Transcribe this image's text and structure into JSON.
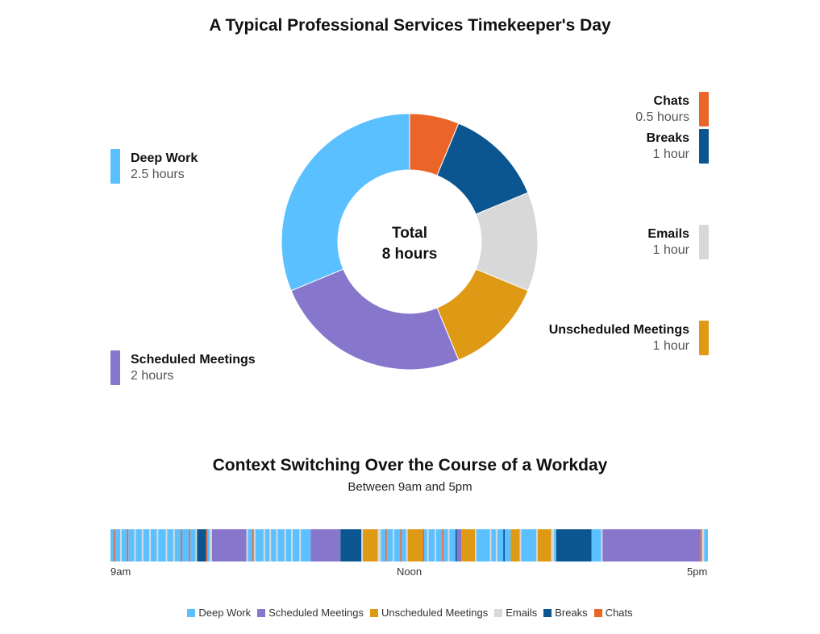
{
  "colors": {
    "deep_work": "#5bc0ff",
    "scheduled_meetings": "#8676cc",
    "unscheduled_meetings": "#de9a14",
    "emails": "#d8d8d8",
    "breaks": "#0b5590",
    "chats": "#ea6527"
  },
  "chart_data": [
    {
      "type": "pie",
      "title": "A Typical Professional Services Timekeeper's Day",
      "center_label": [
        "Total",
        "8 hours"
      ],
      "slices": [
        {
          "key": "chats",
          "name": "Chats",
          "value": 0.5,
          "label": "0.5 hours"
        },
        {
          "key": "breaks",
          "name": "Breaks",
          "value": 1,
          "label": "1 hour"
        },
        {
          "key": "emails",
          "name": "Emails",
          "value": 1,
          "label": "1 hour"
        },
        {
          "key": "unscheduled_meetings",
          "name": "Unscheduled Meetings",
          "value": 1,
          "label": "1 hour"
        },
        {
          "key": "scheduled_meetings",
          "name": "Scheduled Meetings",
          "value": 2,
          "label": "2 hours"
        },
        {
          "key": "deep_work",
          "name": "Deep Work",
          "value": 2.5,
          "label": "2.5 hours"
        }
      ]
    },
    {
      "type": "timeline",
      "title": "Context Switching Over the Course of a Workday",
      "subtitle": "Between 9am and 5pm",
      "x_ticks": [
        "9am",
        "Noon",
        "5pm"
      ],
      "x_range_hours": [
        9,
        17
      ],
      "segments": [
        {
          "start": 9.0,
          "end": 9.04,
          "key": "deep_work"
        },
        {
          "start": 9.04,
          "end": 9.06,
          "key": "chats"
        },
        {
          "start": 9.06,
          "end": 9.13,
          "key": "deep_work"
        },
        {
          "start": 9.13,
          "end": 9.15,
          "key": "emails"
        },
        {
          "start": 9.15,
          "end": 9.22,
          "key": "deep_work"
        },
        {
          "start": 9.22,
          "end": 9.24,
          "key": "chats"
        },
        {
          "start": 9.24,
          "end": 9.32,
          "key": "deep_work"
        },
        {
          "start": 9.32,
          "end": 9.34,
          "key": "emails"
        },
        {
          "start": 9.34,
          "end": 9.42,
          "key": "deep_work"
        },
        {
          "start": 9.42,
          "end": 9.44,
          "key": "emails"
        },
        {
          "start": 9.44,
          "end": 9.52,
          "key": "deep_work"
        },
        {
          "start": 9.52,
          "end": 9.54,
          "key": "emails"
        },
        {
          "start": 9.54,
          "end": 9.62,
          "key": "deep_work"
        },
        {
          "start": 9.62,
          "end": 9.64,
          "key": "emails"
        },
        {
          "start": 9.64,
          "end": 9.74,
          "key": "deep_work"
        },
        {
          "start": 9.74,
          "end": 9.76,
          "key": "emails"
        },
        {
          "start": 9.76,
          "end": 9.84,
          "key": "deep_work"
        },
        {
          "start": 9.84,
          "end": 9.86,
          "key": "emails"
        },
        {
          "start": 9.86,
          "end": 9.94,
          "key": "deep_work"
        },
        {
          "start": 9.94,
          "end": 9.96,
          "key": "chats"
        },
        {
          "start": 9.96,
          "end": 10.05,
          "key": "deep_work"
        },
        {
          "start": 10.05,
          "end": 10.07,
          "key": "chats"
        },
        {
          "start": 10.07,
          "end": 10.14,
          "key": "deep_work"
        },
        {
          "start": 10.14,
          "end": 10.16,
          "key": "emails"
        },
        {
          "start": 10.16,
          "end": 10.28,
          "key": "breaks"
        },
        {
          "start": 10.28,
          "end": 10.3,
          "key": "chats"
        },
        {
          "start": 10.3,
          "end": 10.33,
          "key": "deep_work"
        },
        {
          "start": 10.33,
          "end": 10.36,
          "key": "emails"
        },
        {
          "start": 10.36,
          "end": 10.82,
          "key": "scheduled_meetings"
        },
        {
          "start": 10.82,
          "end": 10.84,
          "key": "emails"
        },
        {
          "start": 10.84,
          "end": 10.9,
          "key": "deep_work"
        },
        {
          "start": 10.9,
          "end": 10.92,
          "key": "chats"
        },
        {
          "start": 10.92,
          "end": 10.94,
          "key": "emails"
        },
        {
          "start": 10.94,
          "end": 11.05,
          "key": "deep_work"
        },
        {
          "start": 11.05,
          "end": 11.07,
          "key": "emails"
        },
        {
          "start": 11.07,
          "end": 11.13,
          "key": "deep_work"
        },
        {
          "start": 11.13,
          "end": 11.15,
          "key": "emails"
        },
        {
          "start": 11.15,
          "end": 11.22,
          "key": "deep_work"
        },
        {
          "start": 11.22,
          "end": 11.24,
          "key": "emails"
        },
        {
          "start": 11.24,
          "end": 11.33,
          "key": "deep_work"
        },
        {
          "start": 11.33,
          "end": 11.35,
          "key": "emails"
        },
        {
          "start": 11.35,
          "end": 11.42,
          "key": "deep_work"
        },
        {
          "start": 11.42,
          "end": 11.44,
          "key": "emails"
        },
        {
          "start": 11.44,
          "end": 11.53,
          "key": "deep_work"
        },
        {
          "start": 11.53,
          "end": 11.55,
          "key": "emails"
        },
        {
          "start": 11.55,
          "end": 11.68,
          "key": "deep_work"
        },
        {
          "start": 11.68,
          "end": 12.08,
          "key": "scheduled_meetings"
        },
        {
          "start": 12.08,
          "end": 12.36,
          "key": "breaks"
        },
        {
          "start": 12.36,
          "end": 12.38,
          "key": "emails"
        },
        {
          "start": 12.38,
          "end": 12.58,
          "key": "unscheduled_meetings"
        },
        {
          "start": 12.58,
          "end": 12.62,
          "key": "emails"
        },
        {
          "start": 12.62,
          "end": 12.68,
          "key": "deep_work"
        },
        {
          "start": 12.68,
          "end": 12.7,
          "key": "chats"
        },
        {
          "start": 12.7,
          "end": 12.78,
          "key": "deep_work"
        },
        {
          "start": 12.78,
          "end": 12.8,
          "key": "emails"
        },
        {
          "start": 12.8,
          "end": 12.88,
          "key": "deep_work"
        },
        {
          "start": 12.88,
          "end": 12.9,
          "key": "chats"
        },
        {
          "start": 12.9,
          "end": 12.96,
          "key": "deep_work"
        },
        {
          "start": 12.96,
          "end": 12.98,
          "key": "emails"
        },
        {
          "start": 12.98,
          "end": 13.18,
          "key": "unscheduled_meetings"
        },
        {
          "start": 13.18,
          "end": 13.2,
          "key": "chats"
        },
        {
          "start": 13.2,
          "end": 13.24,
          "key": "deep_work"
        },
        {
          "start": 13.24,
          "end": 13.26,
          "key": "emails"
        },
        {
          "start": 13.26,
          "end": 13.34,
          "key": "deep_work"
        },
        {
          "start": 13.34,
          "end": 13.36,
          "key": "emails"
        },
        {
          "start": 13.36,
          "end": 13.44,
          "key": "deep_work"
        },
        {
          "start": 13.44,
          "end": 13.46,
          "key": "chats"
        },
        {
          "start": 13.46,
          "end": 13.52,
          "key": "deep_work"
        },
        {
          "start": 13.52,
          "end": 13.54,
          "key": "emails"
        },
        {
          "start": 13.54,
          "end": 13.62,
          "key": "deep_work"
        },
        {
          "start": 13.62,
          "end": 13.64,
          "key": "breaks"
        },
        {
          "start": 13.64,
          "end": 13.7,
          "key": "scheduled_meetings"
        },
        {
          "start": 13.7,
          "end": 13.88,
          "key": "unscheduled_meetings"
        },
        {
          "start": 13.88,
          "end": 13.9,
          "key": "emails"
        },
        {
          "start": 13.9,
          "end": 14.08,
          "key": "deep_work"
        },
        {
          "start": 14.08,
          "end": 14.1,
          "key": "emails"
        },
        {
          "start": 14.1,
          "end": 14.16,
          "key": "deep_work"
        },
        {
          "start": 14.16,
          "end": 14.18,
          "key": "emails"
        },
        {
          "start": 14.18,
          "end": 14.26,
          "key": "deep_work"
        },
        {
          "start": 14.26,
          "end": 14.28,
          "key": "breaks"
        },
        {
          "start": 14.28,
          "end": 14.36,
          "key": "deep_work"
        },
        {
          "start": 14.36,
          "end": 14.48,
          "key": "unscheduled_meetings"
        },
        {
          "start": 14.48,
          "end": 14.5,
          "key": "emails"
        },
        {
          "start": 14.5,
          "end": 14.7,
          "key": "deep_work"
        },
        {
          "start": 14.7,
          "end": 14.72,
          "key": "emails"
        },
        {
          "start": 14.72,
          "end": 14.9,
          "key": "unscheduled_meetings"
        },
        {
          "start": 14.9,
          "end": 14.94,
          "key": "emails"
        },
        {
          "start": 14.94,
          "end": 14.97,
          "key": "deep_work"
        },
        {
          "start": 14.97,
          "end": 15.44,
          "key": "breaks"
        },
        {
          "start": 15.44,
          "end": 15.57,
          "key": "deep_work"
        },
        {
          "start": 15.57,
          "end": 15.59,
          "key": "emails"
        },
        {
          "start": 15.59,
          "end": 16.9,
          "key": "scheduled_meetings"
        },
        {
          "start": 16.9,
          "end": 16.92,
          "key": "chats"
        },
        {
          "start": 16.92,
          "end": 16.95,
          "key": "emails"
        },
        {
          "start": 16.95,
          "end": 17.0,
          "key": "deep_work"
        }
      ]
    }
  ],
  "legend": [
    {
      "key": "deep_work",
      "label": "Deep Work"
    },
    {
      "key": "scheduled_meetings",
      "label": "Scheduled Meetings"
    },
    {
      "key": "unscheduled_meetings",
      "label": "Unscheduled Meetings"
    },
    {
      "key": "emails",
      "label": "Emails"
    },
    {
      "key": "breaks",
      "label": "Breaks"
    },
    {
      "key": "chats",
      "label": "Chats"
    }
  ]
}
